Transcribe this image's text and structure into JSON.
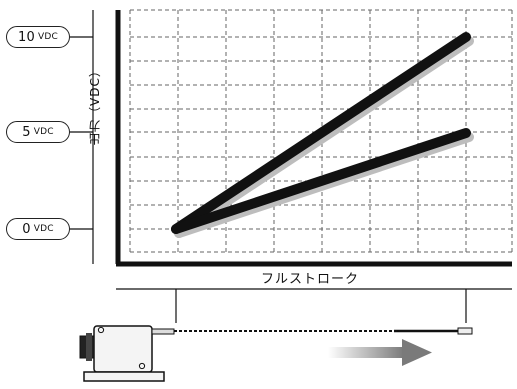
{
  "voltage_labels": [
    {
      "value": "10",
      "unit": "VDC"
    },
    {
      "value": "5",
      "unit": "VDC"
    },
    {
      "value": "0",
      "unit": "VDC"
    }
  ],
  "y_axis_label": "出力（VDC）",
  "x_axis_label": "フルストローク",
  "chart_data": {
    "type": "line",
    "xlabel": "フルストローク",
    "ylabel": "出力（VDC）",
    "ylim": [
      0,
      10
    ],
    "grid": true,
    "series": [
      {
        "x": [
          0,
          1
        ],
        "values": [
          0,
          10
        ]
      },
      {
        "x": [
          0,
          1
        ],
        "values": [
          0,
          5
        ]
      }
    ]
  },
  "colors": {
    "line": "#111111",
    "shadow": "#bdbdbd",
    "grid": "#666666",
    "arrow": "#8a8a8a"
  }
}
